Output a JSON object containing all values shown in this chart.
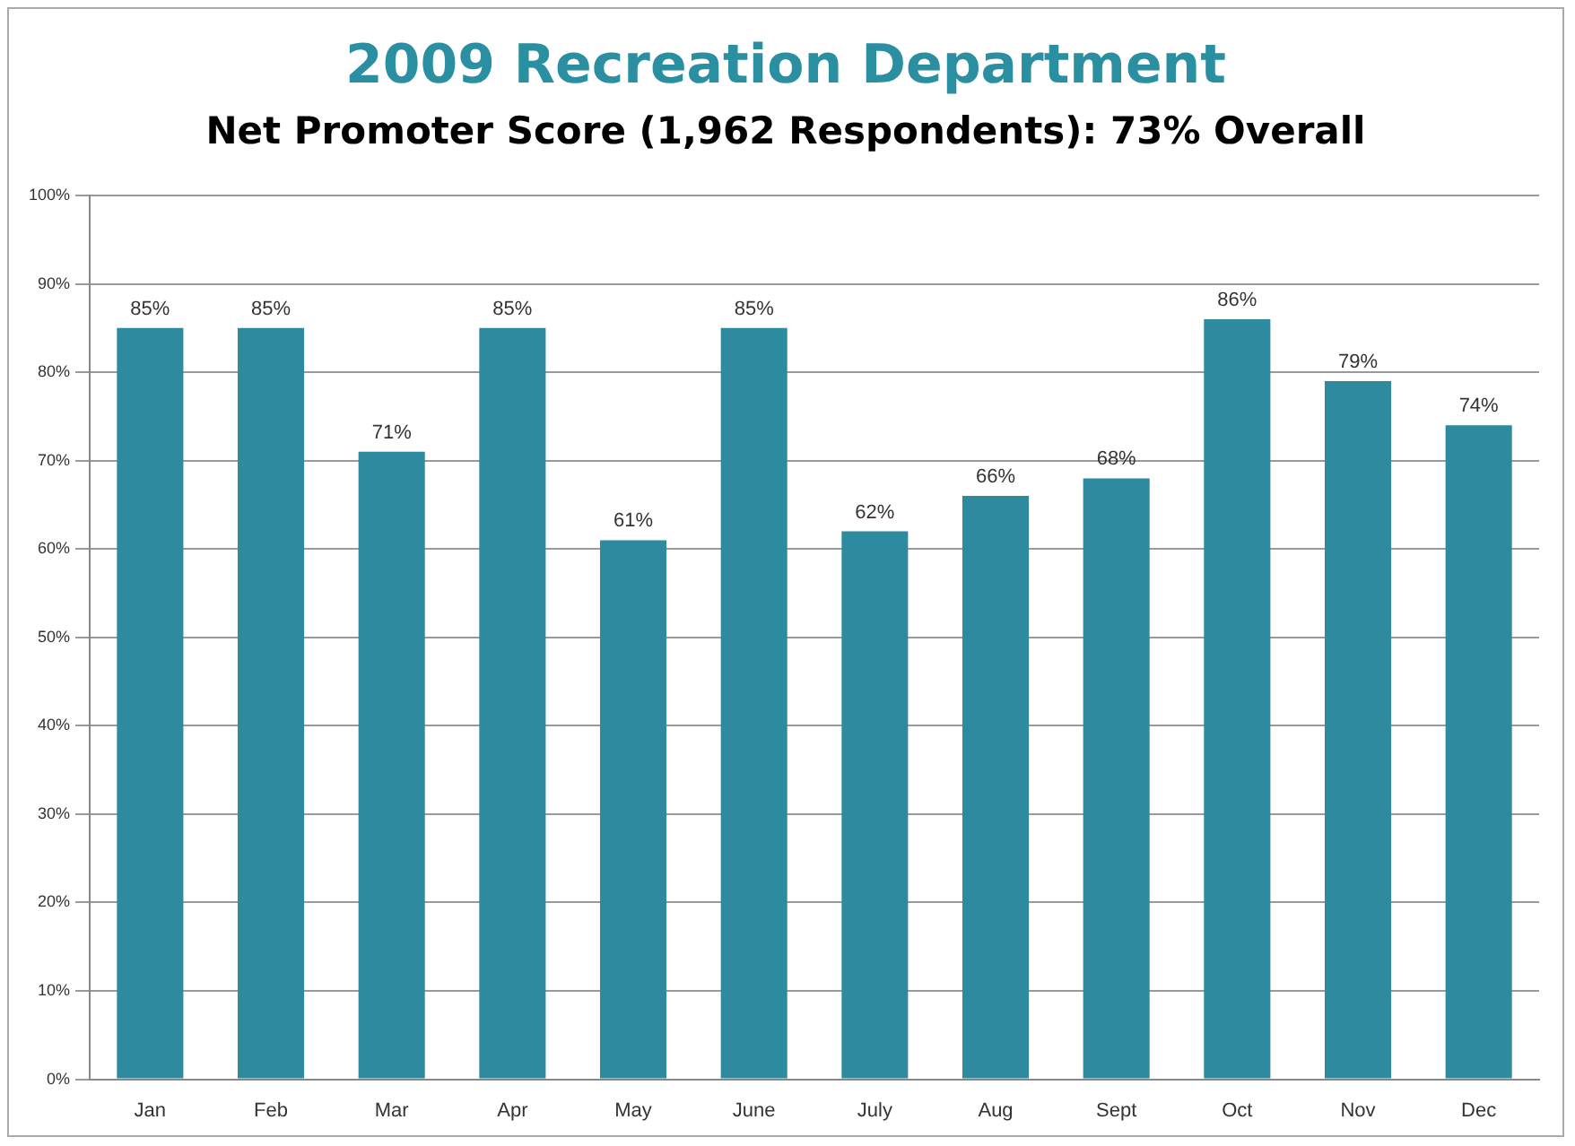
{
  "chart_data": {
    "type": "bar",
    "title": "2009 Recreation Department",
    "subtitle": "Net Promoter Score (1,962 Respondents): 73% Overall",
    "categories": [
      "Jan",
      "Feb",
      "Mar",
      "Apr",
      "May",
      "June",
      "July",
      "Aug",
      "Sept",
      "Oct",
      "Nov",
      "Dec"
    ],
    "values": [
      85,
      85,
      71,
      85,
      61,
      85,
      62,
      66,
      68,
      86,
      79,
      74
    ],
    "value_labels": [
      "85%",
      "85%",
      "71%",
      "85%",
      "61%",
      "85%",
      "62%",
      "66%",
      "68%",
      "86%",
      "79%",
      "74%"
    ],
    "color": "#2e8a9e",
    "ylim": [
      0,
      100
    ],
    "yticks": [
      {
        "value": 0,
        "label": "0%"
      },
      {
        "value": 10,
        "label": "10%"
      },
      {
        "value": 20,
        "label": "20%"
      },
      {
        "value": 30,
        "label": "30%"
      },
      {
        "value": 40,
        "label": "40%"
      },
      {
        "value": 50,
        "label": "50%"
      },
      {
        "value": 60,
        "label": "60%"
      },
      {
        "value": 70,
        "label": "70%"
      },
      {
        "value": 80,
        "label": "80%"
      },
      {
        "value": 90,
        "label": "90%"
      },
      {
        "value": 100,
        "label": "100%"
      }
    ],
    "grid": "y",
    "legend": false
  }
}
